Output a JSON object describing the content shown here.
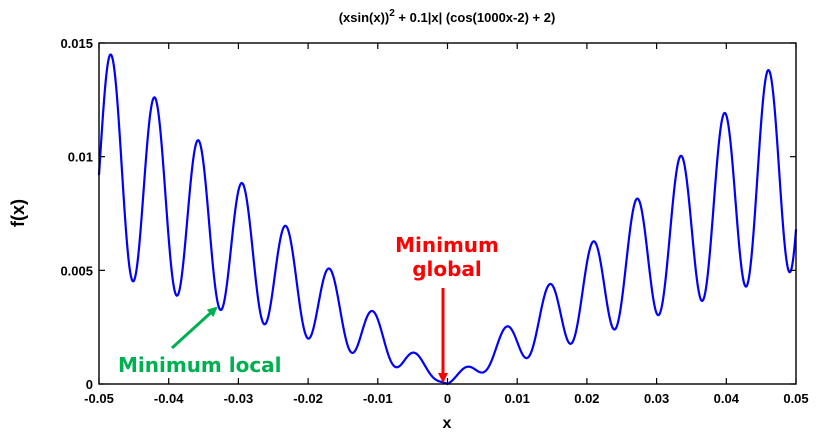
{
  "chart_data": {
    "type": "line",
    "title_main": "(xsin(x))",
    "title_sup": "2",
    "title_rest": " + 0.1|x| (cos(1000x-2) + 2)",
    "xlabel": "x",
    "ylabel": "f(x)",
    "xlim": [
      -0.05,
      0.05
    ],
    "ylim": [
      0,
      0.015
    ],
    "xticks": [
      -0.05,
      -0.04,
      -0.03,
      -0.02,
      -0.01,
      0,
      0.01,
      0.02,
      0.03,
      0.04,
      0.05
    ],
    "xtick_labels": [
      "-0.05",
      "-0.04",
      "-0.03",
      "-0.02",
      "-0.01",
      "0",
      "0.01",
      "0.02",
      "0.03",
      "0.04",
      "0.05"
    ],
    "yticks": [
      0,
      0.005,
      0.01,
      0.015
    ],
    "ytick_labels": [
      "0",
      "0.005",
      "0.01",
      "0.015"
    ],
    "grid": false,
    "series": [
      {
        "color": "#0000ff",
        "function": "(x*sin(x))^2 + 0.1*|x|*(cos(1000x-2) + 2)"
      }
    ],
    "annotations": [
      {
        "text_line1": "Minimum",
        "text_line2": "global",
        "color": "#ff0000",
        "points_to": [
          0,
          0
        ]
      },
      {
        "text": "Minimum local",
        "color": "#00b050",
        "points_to": [
          -0.0325,
          0.0033
        ]
      }
    ]
  }
}
